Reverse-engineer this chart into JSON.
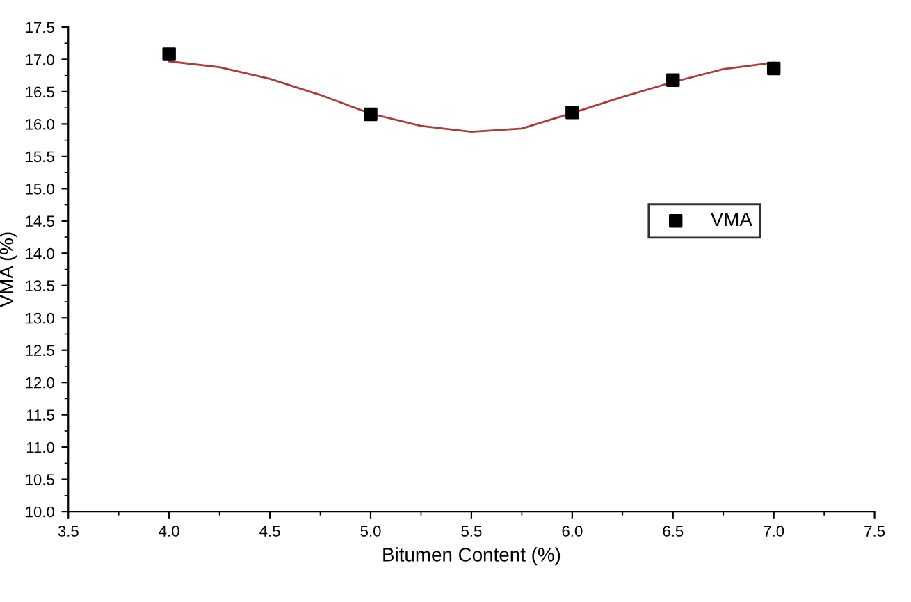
{
  "chart_data": {
    "type": "scatter",
    "xlabel": "Bitumen Content (%)",
    "ylabel": "VMA (%)",
    "series": [
      {
        "name": "VMA",
        "color": "#000000",
        "marker": "square",
        "x": [
          4.0,
          5.0,
          6.0,
          6.5,
          7.0
        ],
        "values": [
          17.08,
          16.15,
          16.18,
          16.68,
          16.86
        ]
      },
      {
        "type": "line",
        "color": "#b03a3a",
        "marker": "none",
        "x": [
          4.0,
          4.25,
          4.5,
          4.75,
          5.0,
          5.25,
          5.5,
          5.75,
          6.0,
          6.25,
          6.5,
          6.75,
          7.0
        ],
        "values": [
          16.97,
          16.88,
          16.7,
          16.45,
          16.16,
          15.97,
          15.88,
          15.93,
          16.17,
          16.42,
          16.65,
          16.85,
          16.95
        ]
      }
    ],
    "xlim": [
      3.5,
      7.5
    ],
    "xticks": [
      3.5,
      {
        "value": 4,
        "label": "4.0"
      },
      4.5,
      {
        "value": 5,
        "label": "5.0"
      },
      5.5,
      {
        "value": 6,
        "label": "6.0"
      },
      6.5,
      {
        "value": 7,
        "label": "7.0"
      },
      7.5
    ],
    "ylim": [
      10.0,
      17.5
    ],
    "yticks": [
      {
        "value": 10,
        "label": "10.0"
      },
      10.5,
      {
        "value": 11,
        "label": "11.0"
      },
      11.5,
      {
        "value": 12,
        "label": "12.0"
      },
      12.5,
      {
        "value": 13,
        "label": "13.0"
      },
      13.5,
      {
        "value": 14,
        "label": "14.0"
      },
      14.5,
      {
        "value": 15,
        "label": "15.0"
      },
      15.5,
      {
        "value": 16,
        "label": "16.0"
      },
      16.5,
      {
        "value": 17,
        "label": "17.0"
      },
      17.5
    ],
    "grid": false,
    "legend": "right"
  }
}
